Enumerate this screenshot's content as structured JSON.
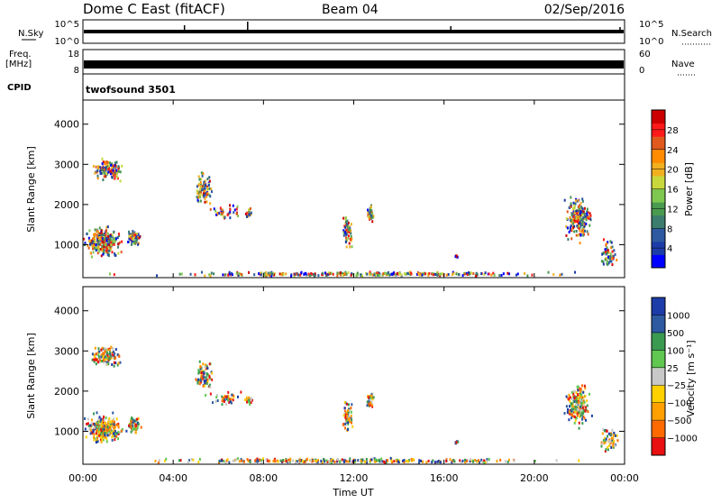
{
  "header": {
    "station": "Dome C East (fitACF)",
    "beam": "Beam 04",
    "date": "02/Sep/2016"
  },
  "noise_panel": {
    "left_label": "N.Sky",
    "left_ticks": [
      "10^5",
      "10^0"
    ],
    "right_label": "N.Search",
    "right_ticks": [
      "10^5",
      "10^0"
    ]
  },
  "freq_panel": {
    "left_label": "Freq.",
    "left_unit": "[MHz]",
    "left_ticks": [
      "18",
      "8"
    ],
    "right_label": "Nave",
    "right_ticks": [
      "60",
      "0"
    ]
  },
  "cpid": {
    "label": "CPID",
    "program": "twofsound 3501"
  },
  "time_axis": {
    "label": "Time UT",
    "ticks": [
      "00:00",
      "04:00",
      "08:00",
      "12:00",
      "16:00",
      "20:00",
      "00:00"
    ]
  },
  "chart_data": [
    {
      "type": "heatmap",
      "title": "Power",
      "ylabel": "Slant Range [km]",
      "yticks": [
        "4000",
        "3000",
        "2000",
        "1000"
      ],
      "ylim": [
        180,
        4600
      ],
      "xlim_hours": [
        0,
        24
      ],
      "colorbar": {
        "label": "Power [dB]",
        "ticks": [
          "28",
          "24",
          "20",
          "16",
          "12",
          "8",
          "4"
        ],
        "colors": [
          "#0000ff",
          "#1c3ca8",
          "#2d5aa0",
          "#3c7d6e",
          "#4a9a50",
          "#7ec850",
          "#c8d83c",
          "#f0b020",
          "#ff8c00",
          "#e05a1e",
          "#ff1a1a",
          "#cc0000"
        ]
      },
      "clusters": [
        {
          "t": 0.9,
          "r": 1100,
          "dt": 1.0,
          "dr": 450,
          "n": 260
        },
        {
          "t": 1.0,
          "r": 2900,
          "dt": 0.9,
          "dr": 350,
          "n": 130
        },
        {
          "t": 2.2,
          "r": 1200,
          "dt": 0.4,
          "dr": 250,
          "n": 70
        },
        {
          "t": 5.3,
          "r": 2400,
          "dt": 0.5,
          "dr": 500,
          "n": 90
        },
        {
          "t": 6.3,
          "r": 1850,
          "dt": 0.8,
          "dr": 200,
          "n": 40
        },
        {
          "t": 7.3,
          "r": 1800,
          "dt": 0.2,
          "dr": 150,
          "n": 20
        },
        {
          "t": 11.7,
          "r": 1400,
          "dt": 0.3,
          "dr": 500,
          "n": 60
        },
        {
          "t": 12.7,
          "r": 1800,
          "dt": 0.2,
          "dr": 250,
          "n": 40
        },
        {
          "t": 16.5,
          "r": 750,
          "dt": 0.1,
          "dr": 60,
          "n": 10
        },
        {
          "t": 21.9,
          "r": 1700,
          "dt": 0.7,
          "dr": 700,
          "n": 200
        },
        {
          "t": 23.3,
          "r": 800,
          "dt": 0.5,
          "dr": 400,
          "n": 60
        },
        {
          "t": 12.0,
          "r": 300,
          "dt": 11.8,
          "dr": 70,
          "n": 300
        }
      ]
    },
    {
      "type": "heatmap",
      "title": "Velocity",
      "ylabel": "Slant Range [km]",
      "yticks": [
        "4000",
        "3000",
        "2000",
        "1000"
      ],
      "ylim": [
        180,
        4600
      ],
      "xlim_hours": [
        0,
        24
      ],
      "colorbar": {
        "label": "Velocity [m s⁻¹]",
        "ticks": [
          "1000",
          "500",
          "100",
          "25",
          "−25",
          "−100",
          "−500",
          "−1000"
        ],
        "colors": [
          "#e81010",
          "#ff6a00",
          "#ffa000",
          "#ffd000",
          "#c8c8c8",
          "#60c850",
          "#3a9a50",
          "#2d5aa0",
          "#1c3ca8"
        ]
      },
      "clusters": [
        {
          "t": 0.9,
          "r": 1100,
          "dt": 1.0,
          "dr": 450,
          "n": 260
        },
        {
          "t": 1.0,
          "r": 2900,
          "dt": 0.9,
          "dr": 350,
          "n": 130
        },
        {
          "t": 2.2,
          "r": 1200,
          "dt": 0.4,
          "dr": 250,
          "n": 70
        },
        {
          "t": 5.3,
          "r": 2400,
          "dt": 0.5,
          "dr": 500,
          "n": 90
        },
        {
          "t": 6.3,
          "r": 1850,
          "dt": 0.8,
          "dr": 200,
          "n": 40
        },
        {
          "t": 7.3,
          "r": 1800,
          "dt": 0.2,
          "dr": 150,
          "n": 20
        },
        {
          "t": 11.7,
          "r": 1400,
          "dt": 0.3,
          "dr": 500,
          "n": 60
        },
        {
          "t": 12.7,
          "r": 1800,
          "dt": 0.2,
          "dr": 250,
          "n": 40
        },
        {
          "t": 16.5,
          "r": 750,
          "dt": 0.1,
          "dr": 60,
          "n": 10
        },
        {
          "t": 21.9,
          "r": 1700,
          "dt": 0.7,
          "dr": 700,
          "n": 200
        },
        {
          "t": 23.3,
          "r": 800,
          "dt": 0.5,
          "dr": 400,
          "n": 60
        },
        {
          "t": 12.0,
          "r": 300,
          "dt": 11.8,
          "dr": 70,
          "n": 300
        }
      ]
    }
  ]
}
